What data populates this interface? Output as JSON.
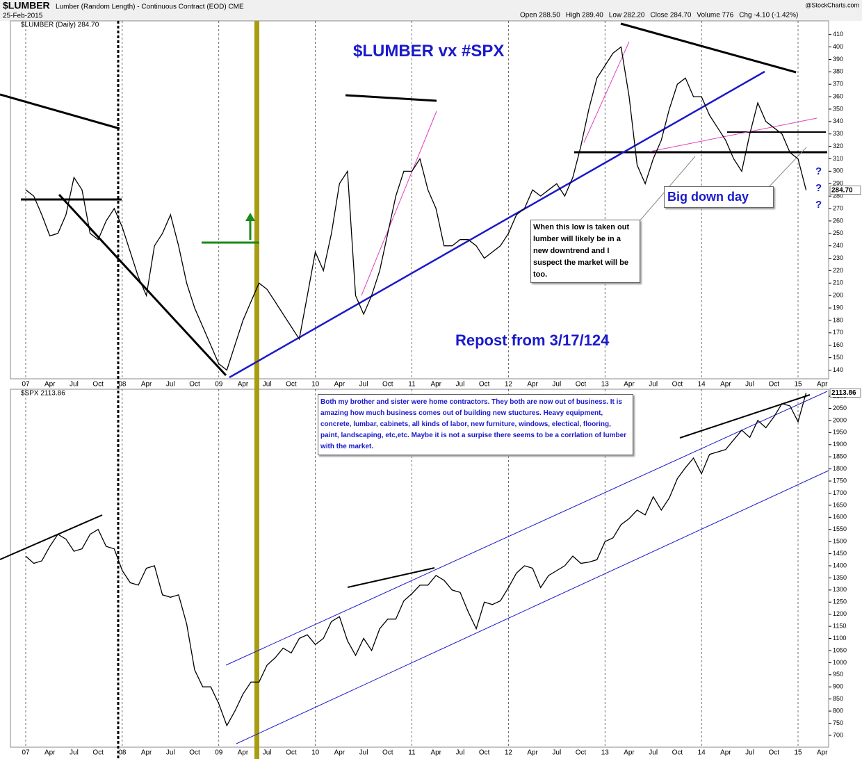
{
  "header": {
    "symbol": "$LUMBER",
    "description": "Lumber (Random Length) - Continuous Contract (EOD) CME",
    "date": "25-Feb-2015",
    "source": "@StockCharts.com",
    "quote": [
      "Open 288.50",
      "High 289.40",
      "Low 282.20",
      "Close 284.70",
      "Volume 776",
      "Chg -4.10 (-1.42%)"
    ]
  },
  "chart_data": [
    {
      "type": "line",
      "label": "$LUMBER (Daily) 284.70",
      "last_label": "284.70",
      "color": "#000000",
      "annotations": [
        "$LUMBER vx  #SPX",
        "Repost from 3/17/124",
        "Big down day",
        "When this low is taken out lumber will likely be in a new downtrend and I suspect the market will be too.",
        "?",
        "?",
        "?"
      ],
      "categories": [
        "07",
        null,
        null,
        "Apr",
        null,
        null,
        "Jul",
        null,
        null,
        "Oct",
        null,
        null,
        "08",
        null,
        null,
        "Apr",
        null,
        null,
        "Jul",
        null,
        null,
        "Oct",
        null,
        null,
        "09",
        null,
        null,
        "Apr",
        null,
        null,
        "Jul",
        null,
        null,
        "Oct",
        null,
        null,
        "10",
        null,
        null,
        "Apr",
        null,
        null,
        "Jul",
        null,
        null,
        "Oct",
        null,
        null,
        "11",
        null,
        null,
        "Apr",
        null,
        null,
        "Jul",
        null,
        null,
        "Oct",
        null,
        null,
        "12",
        null,
        null,
        "Apr",
        null,
        null,
        "Jul",
        null,
        null,
        "Oct",
        null,
        null,
        "13",
        null,
        null,
        "Apr",
        null,
        null,
        "Jul",
        null,
        null,
        "Oct",
        null,
        null,
        "14",
        null,
        null,
        "Apr",
        null,
        null,
        "Jul",
        null,
        null,
        "Oct",
        null,
        null,
        "15",
        null,
        null,
        "Apr"
      ],
      "values": [
        285,
        280,
        265,
        248,
        250,
        265,
        295,
        285,
        250,
        245,
        260,
        270,
        255,
        235,
        215,
        200,
        240,
        250,
        265,
        240,
        210,
        190,
        175,
        160,
        145,
        140,
        160,
        180,
        195,
        210,
        205,
        195,
        185,
        175,
        165,
        200,
        235,
        220,
        250,
        290,
        300,
        200,
        185,
        200,
        220,
        250,
        280,
        300,
        300,
        310,
        285,
        270,
        240,
        240,
        245,
        245,
        240,
        230,
        235,
        240,
        250,
        265,
        270,
        285,
        280,
        285,
        290,
        280,
        295,
        320,
        350,
        375,
        385,
        395,
        400,
        360,
        305,
        290,
        310,
        325,
        350,
        370,
        375,
        360,
        360,
        345,
        335,
        325,
        310,
        300,
        330,
        355,
        340,
        335,
        330,
        315,
        310,
        284.7,
        null,
        null
      ],
      "ylim": [
        133,
        421
      ],
      "yticks": [
        140,
        150,
        160,
        170,
        180,
        190,
        200,
        210,
        220,
        230,
        240,
        250,
        260,
        270,
        280,
        290,
        300,
        310,
        320,
        330,
        340,
        350,
        360,
        370,
        380,
        390,
        400,
        410
      ]
    },
    {
      "type": "line",
      "label": "$SPX 2113.86",
      "last_label": "2113.86",
      "color": "#000000",
      "annotations": [
        "Both my brother and sister were home contractors. They both are now out of business. It is amazing how much business comes out of building new stuctures. Heavy equipment, concrete, lumbar, cabinets, all kinds of labor, new furniture, windows, electical, flooring, paint, landscaping, etc,etc. Maybe it is not a surpise there seems to be a corrlation of lumber with the market."
      ],
      "categories": [
        "07",
        null,
        null,
        "Apr",
        null,
        null,
        "Jul",
        null,
        null,
        "Oct",
        null,
        null,
        "08",
        null,
        null,
        "Apr",
        null,
        null,
        "Jul",
        null,
        null,
        "Oct",
        null,
        null,
        "09",
        null,
        null,
        "Apr",
        null,
        null,
        "Jul",
        null,
        null,
        "Oct",
        null,
        null,
        "10",
        null,
        null,
        "Apr",
        null,
        null,
        "Jul",
        null,
        null,
        "Oct",
        null,
        null,
        "11",
        null,
        null,
        "Apr",
        null,
        null,
        "Jul",
        null,
        null,
        "Oct",
        null,
        null,
        "12",
        null,
        null,
        "Apr",
        null,
        null,
        "Jul",
        null,
        null,
        "Oct",
        null,
        null,
        "13",
        null,
        null,
        "Apr",
        null,
        null,
        "Jul",
        null,
        null,
        "Oct",
        null,
        null,
        "14",
        null,
        null,
        "Apr",
        null,
        null,
        "Jul",
        null,
        null,
        "Oct",
        null,
        null,
        "15",
        null,
        null,
        "Apr"
      ],
      "values": [
        1440,
        1410,
        1420,
        1480,
        1530,
        1510,
        1460,
        1470,
        1530,
        1550,
        1480,
        1470,
        1380,
        1330,
        1320,
        1390,
        1400,
        1280,
        1270,
        1280,
        1160,
        970,
        900,
        900,
        830,
        740,
        800,
        870,
        920,
        920,
        990,
        1020,
        1060,
        1040,
        1100,
        1115,
        1075,
        1100,
        1170,
        1190,
        1090,
        1030,
        1100,
        1050,
        1140,
        1180,
        1180,
        1255,
        1285,
        1320,
        1320,
        1360,
        1340,
        1300,
        1290,
        1210,
        1140,
        1250,
        1240,
        1255,
        1310,
        1370,
        1400,
        1390,
        1310,
        1360,
        1380,
        1400,
        1440,
        1410,
        1415,
        1425,
        1500,
        1515,
        1570,
        1595,
        1630,
        1610,
        1685,
        1630,
        1680,
        1760,
        1805,
        1845,
        1780,
        1860,
        1870,
        1880,
        1920,
        1960,
        1930,
        2000,
        1970,
        2015,
        2070,
        2060,
        1995,
        2113.86,
        null,
        null
      ],
      "ylim": [
        651,
        2129
      ],
      "yticks": [
        700,
        750,
        800,
        850,
        900,
        950,
        1000,
        1050,
        1100,
        1150,
        1200,
        1250,
        1300,
        1350,
        1400,
        1450,
        1500,
        1550,
        1600,
        1650,
        1700,
        1750,
        1800,
        1850,
        1900,
        1950,
        2000,
        2050,
        2100
      ]
    }
  ]
}
